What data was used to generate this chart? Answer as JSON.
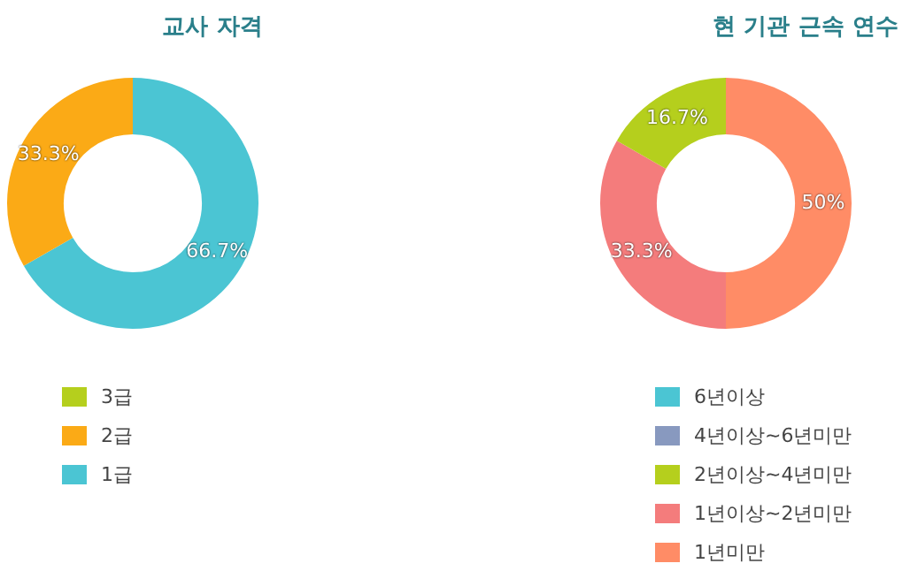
{
  "chart_data": [
    {
      "type": "donut",
      "title": "교사 자격",
      "categories": [
        "3급",
        "2급",
        "1급"
      ],
      "values": [
        0,
        33.3,
        66.7
      ],
      "colors": [
        "#b5cf1d",
        "#fbaa16",
        "#4bc5d3"
      ],
      "value_labels": [
        null,
        "33.3%",
        "66.7%"
      ],
      "legend": "bottom"
    },
    {
      "type": "donut",
      "title": "현 기관 근속 연수",
      "categories": [
        "6년이상",
        "4년이상~6년미만",
        "2년이상~4년미만",
        "1년이상~2년미만",
        "1년미만"
      ],
      "values": [
        0,
        0,
        16.7,
        33.3,
        50
      ],
      "colors": [
        "#4bc5d3",
        "#8899bf",
        "#b5cf1d",
        "#f47c7c",
        "#ff8c66"
      ],
      "value_labels": [
        null,
        null,
        "16.7%",
        "33.3%",
        "50%"
      ],
      "legend": "bottom"
    }
  ]
}
